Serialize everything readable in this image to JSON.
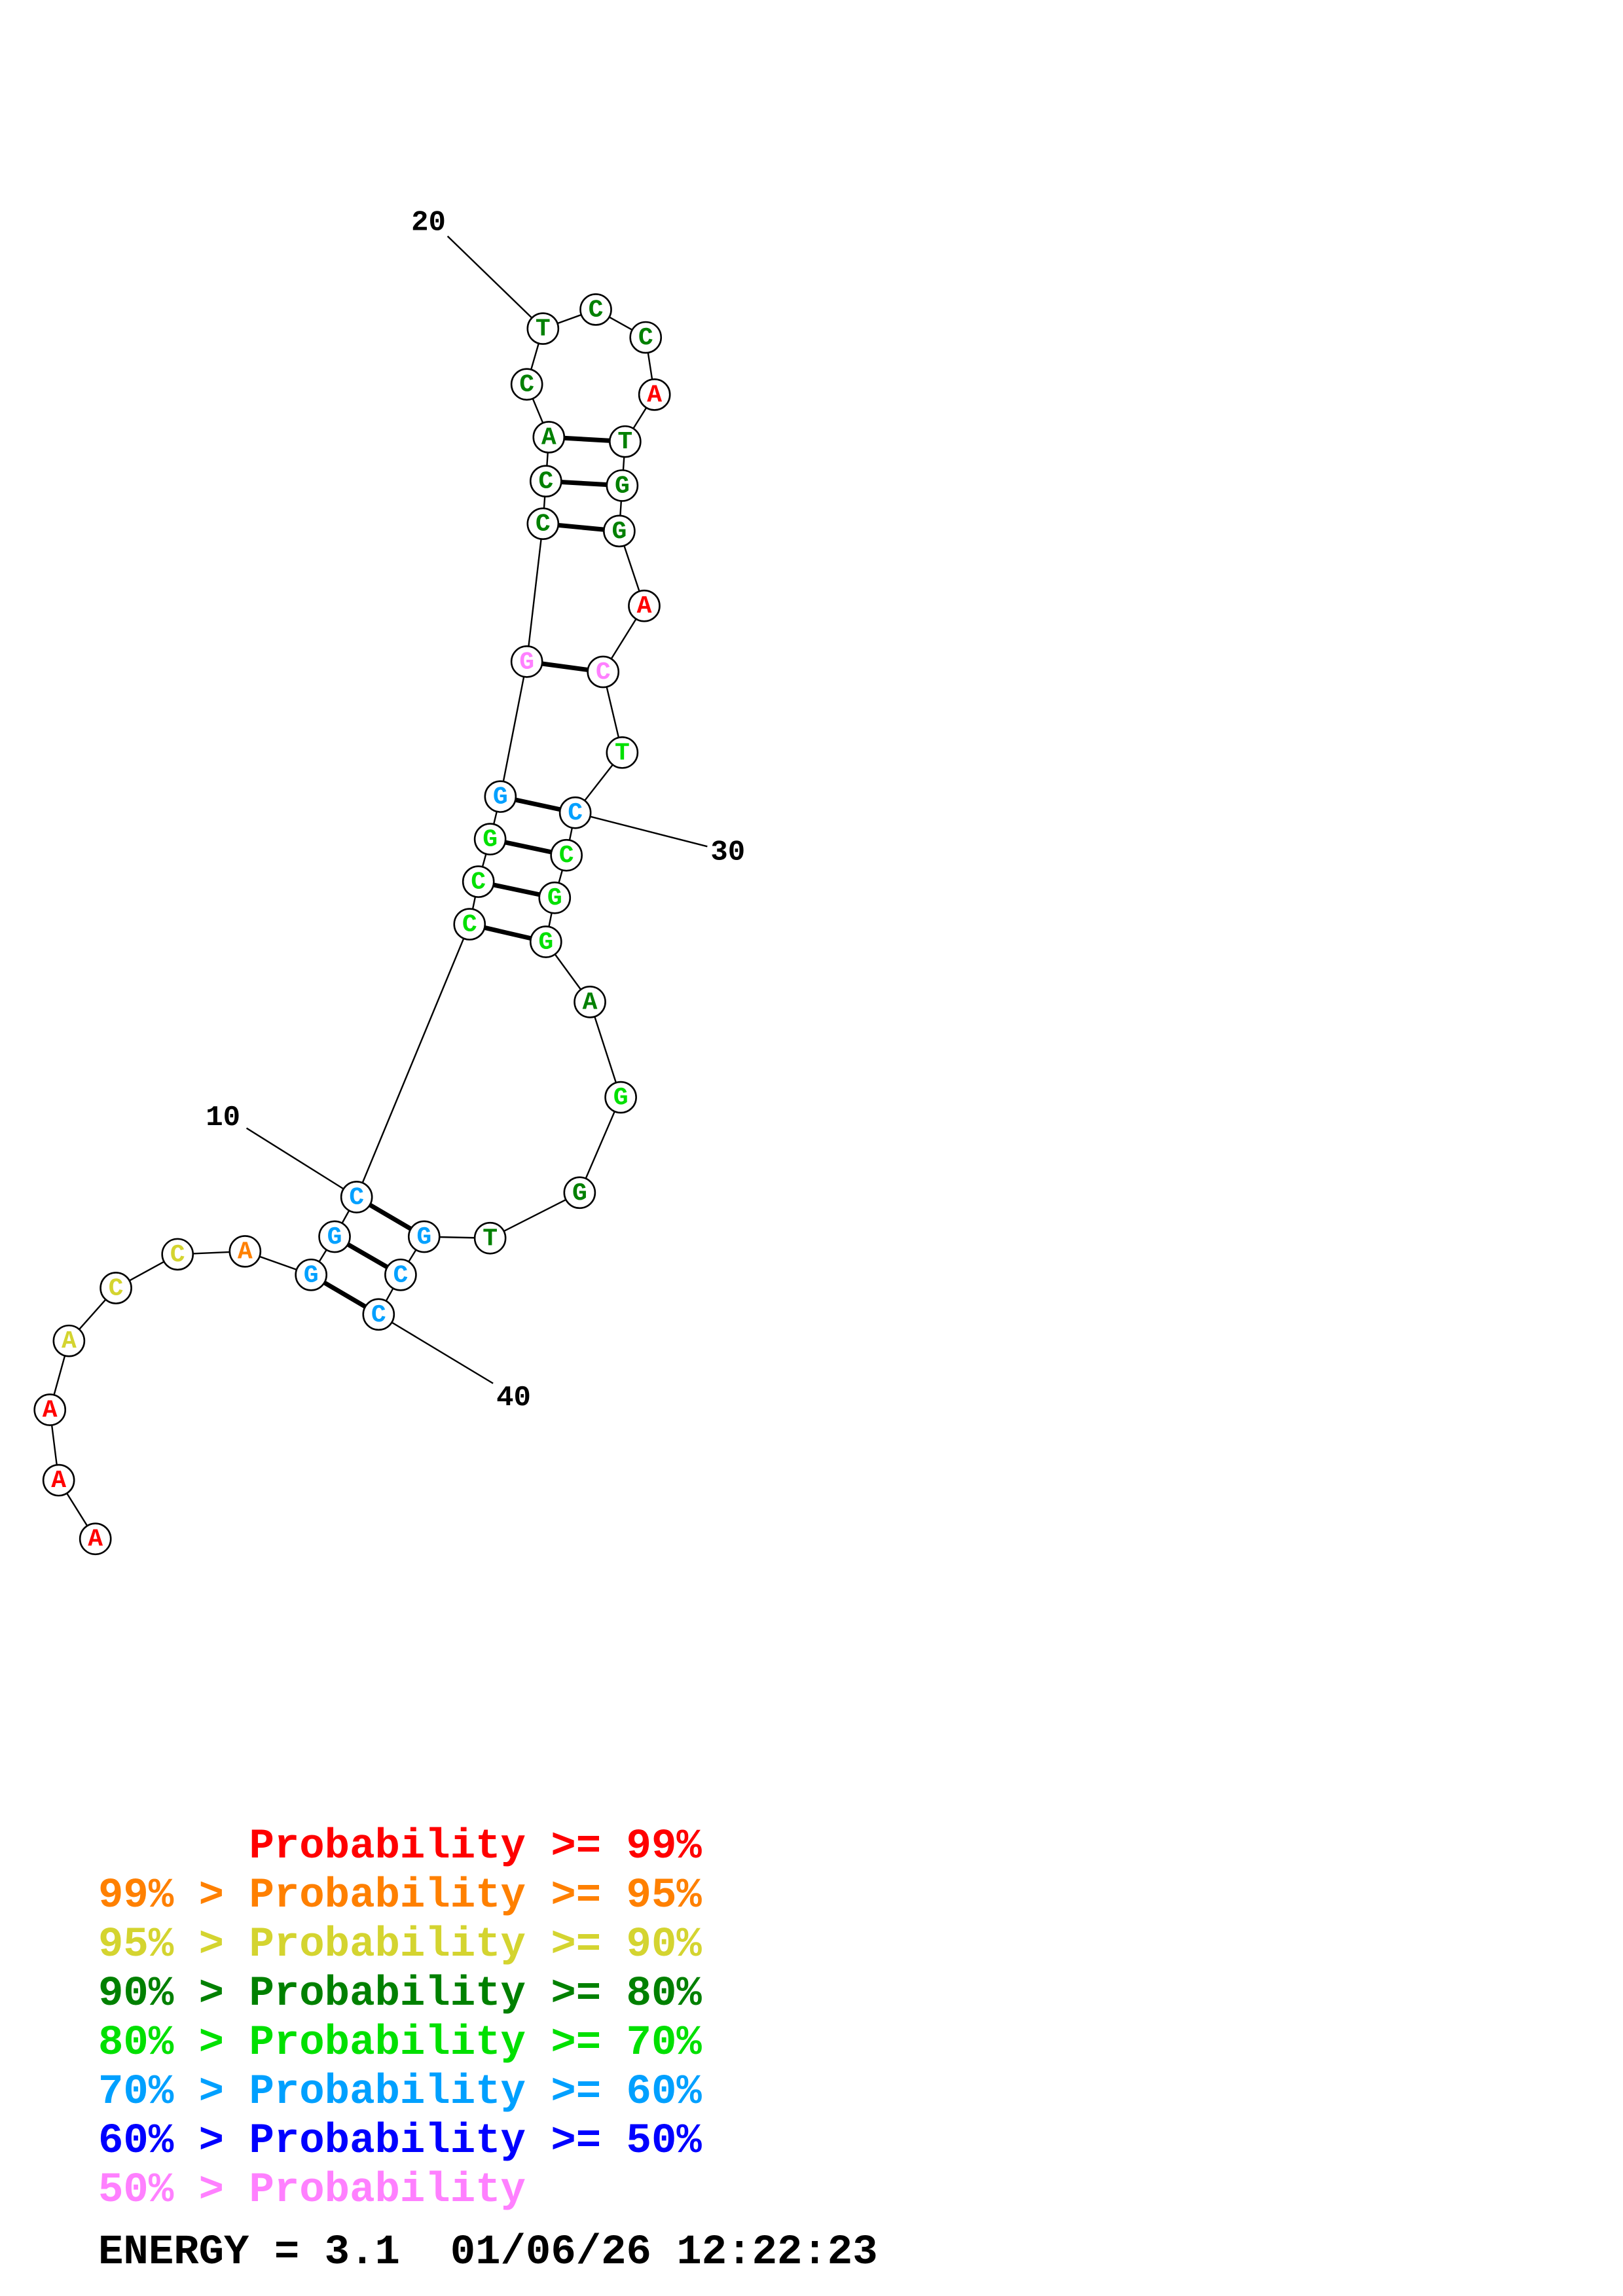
{
  "colors": {
    "p99": "#ff0000",
    "p95": "#ff8000",
    "p90": "#d4d430",
    "p80": "#008000",
    "p70": "#00e000",
    "p60": "#00a0ff",
    "p50": "#0000ff",
    "plow": "#ff80ff"
  },
  "nucleotides": [
    {
      "base": "A",
      "color": "#ff0000"
    },
    {
      "base": "A",
      "color": "#ff0000"
    },
    {
      "base": "A",
      "color": "#ff0000"
    },
    {
      "base": "A",
      "color": "#d4d430"
    },
    {
      "base": "C",
      "color": "#d4d430"
    },
    {
      "base": "C",
      "color": "#d4d430"
    },
    {
      "base": "A",
      "color": "#ff8000"
    },
    {
      "base": "G",
      "color": "#00a0ff"
    },
    {
      "base": "G",
      "color": "#00a0ff"
    },
    {
      "base": "C",
      "color": "#00a0ff"
    },
    {
      "base": "C",
      "color": "#00e000"
    },
    {
      "base": "C",
      "color": "#00e000"
    },
    {
      "base": "G",
      "color": "#00e000"
    },
    {
      "base": "G",
      "color": "#00a0ff"
    },
    {
      "base": "G",
      "color": "#ff80ff"
    },
    {
      "base": "C",
      "color": "#008000"
    },
    {
      "base": "C",
      "color": "#008000"
    },
    {
      "base": "A",
      "color": "#008000"
    },
    {
      "base": "C",
      "color": "#008000"
    },
    {
      "base": "T",
      "color": "#008000"
    },
    {
      "base": "C",
      "color": "#008000"
    },
    {
      "base": "C",
      "color": "#008000"
    },
    {
      "base": "A",
      "color": "#ff0000"
    },
    {
      "base": "T",
      "color": "#008000"
    },
    {
      "base": "G",
      "color": "#008000"
    },
    {
      "base": "G",
      "color": "#008000"
    },
    {
      "base": "A",
      "color": "#ff0000"
    },
    {
      "base": "C",
      "color": "#ff80ff"
    },
    {
      "base": "T",
      "color": "#00e000"
    },
    {
      "base": "C",
      "color": "#00a0ff"
    },
    {
      "base": "C",
      "color": "#00e000"
    },
    {
      "base": "G",
      "color": "#00e000"
    },
    {
      "base": "G",
      "color": "#00e000"
    },
    {
      "base": "A",
      "color": "#008000"
    },
    {
      "base": "G",
      "color": "#00e000"
    },
    {
      "base": "G",
      "color": "#008000"
    },
    {
      "base": "T",
      "color": "#008000"
    },
    {
      "base": "G",
      "color": "#00a0ff"
    },
    {
      "base": "C",
      "color": "#00a0ff"
    },
    {
      "base": "C",
      "color": "#00a0ff"
    }
  ],
  "pairs": [
    [
      8,
      40
    ],
    [
      9,
      39
    ],
    [
      10,
      38
    ],
    [
      11,
      33
    ],
    [
      12,
      32
    ],
    [
      13,
      31
    ],
    [
      14,
      30
    ],
    [
      15,
      28
    ],
    [
      16,
      26
    ],
    [
      17,
      25
    ],
    [
      18,
      24
    ]
  ],
  "position_labels": [
    "10",
    "20",
    "30",
    "40"
  ],
  "legend": [
    {
      "prefix": "",
      "label": "Probability >= 99%",
      "prefix_color": "#ff0000",
      "label_color": "#ff0000"
    },
    {
      "prefix": "99% > ",
      "label": "Probability >= 95%",
      "prefix_color": "#ff8000",
      "label_color": "#ff8000"
    },
    {
      "prefix": "95% > ",
      "label": "Probability >= 90%",
      "prefix_color": "#d4d430",
      "label_color": "#d4d430"
    },
    {
      "prefix": "90% > ",
      "label": "Probability >= 80%",
      "prefix_color": "#008000",
      "label_color": "#008000"
    },
    {
      "prefix": "80% > ",
      "label": "Probability >= 70%",
      "prefix_color": "#00e000",
      "label_color": "#00e000"
    },
    {
      "prefix": "70% > ",
      "label": "Probability >= 60%",
      "prefix_color": "#00a0ff",
      "label_color": "#00a0ff"
    },
    {
      "prefix": "60% > ",
      "label": "Probability >= 50%",
      "prefix_color": "#0000ff",
      "label_color": "#0000ff"
    },
    {
      "prefix": "50% > ",
      "label": "Probability",
      "prefix_color": "#ff80ff",
      "label_color": "#ff80ff"
    }
  ],
  "energy": {
    "text": "ENERGY = 3.1  01/06/26 12:22:23"
  }
}
